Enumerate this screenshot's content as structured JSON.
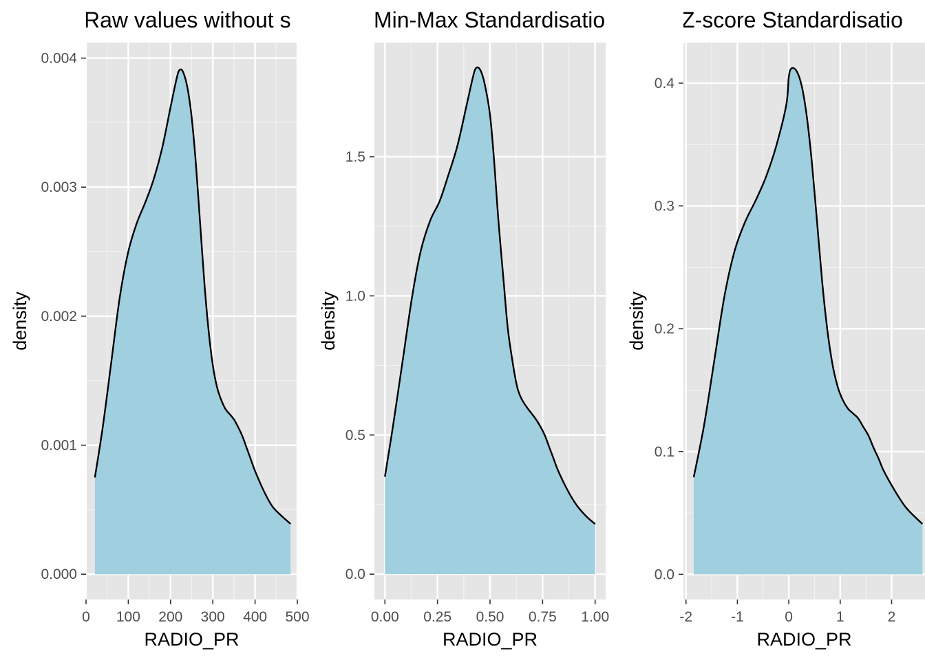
{
  "chart_data": [
    {
      "type": "area",
      "title": "Raw values without s",
      "xlabel": "RADIO_PR",
      "ylabel": "density",
      "xlim": [
        0,
        500
      ],
      "ylim": [
        -0.000196,
        0.00412
      ],
      "x_ticks": [
        0,
        100,
        200,
        300,
        400,
        500
      ],
      "x_tick_labels": [
        "0",
        "100",
        "200",
        "300",
        "400",
        "500"
      ],
      "y_ticks": [
        0,
        0.001,
        0.002,
        0.003,
        0.004
      ],
      "y_tick_labels": [
        "0.000",
        "0.001",
        "0.002",
        "0.003",
        "0.004"
      ],
      "grid": true,
      "fill_color": "#a0cfe0",
      "line_color": "#000000",
      "x": [
        21,
        40,
        60,
        80,
        100,
        120,
        140,
        160,
        180,
        200,
        215,
        222,
        230,
        240,
        250,
        260,
        270,
        280,
        290,
        300,
        310,
        320,
        330,
        340,
        350,
        360,
        370,
        380,
        390,
        400,
        420,
        440,
        460,
        484
      ],
      "y": [
        0.00075,
        0.00115,
        0.00165,
        0.00215,
        0.0025,
        0.00272,
        0.00288,
        0.00306,
        0.0033,
        0.00362,
        0.00385,
        0.00391,
        0.00389,
        0.00377,
        0.00354,
        0.00318,
        0.00272,
        0.00226,
        0.00189,
        0.00162,
        0.00145,
        0.00135,
        0.00128,
        0.00124,
        0.0012,
        0.00114,
        0.00107,
        0.00098,
        0.00089,
        0.0008,
        0.00065,
        0.00053,
        0.00046,
        0.00039
      ]
    },
    {
      "type": "area",
      "title": "Min-Max Standardisatio",
      "xlabel": "RADIO_PR",
      "ylabel": "density",
      "xlim": [
        -0.05,
        1.05
      ],
      "ylim": [
        -0.091,
        1.91
      ],
      "x_ticks": [
        0,
        0.25,
        0.5,
        0.75,
        1
      ],
      "x_tick_labels": [
        "0.00",
        "0.25",
        "0.50",
        "0.75",
        "1.00"
      ],
      "y_ticks": [
        0,
        0.5,
        1,
        1.5
      ],
      "y_tick_labels": [
        "0.0",
        "0.5",
        "1.0",
        "1.5"
      ],
      "grid": true,
      "fill_color": "#a0cfe0",
      "line_color": "#000000",
      "x": [
        0,
        0.04,
        0.085,
        0.13,
        0.17,
        0.215,
        0.26,
        0.3,
        0.345,
        0.39,
        0.42,
        0.435,
        0.455,
        0.475,
        0.5,
        0.52,
        0.54,
        0.565,
        0.585,
        0.61,
        0.63,
        0.65,
        0.675,
        0.695,
        0.715,
        0.74,
        0.76,
        0.78,
        0.8,
        0.825,
        0.87,
        0.91,
        0.955,
        1
      ],
      "y": [
        0.35,
        0.54,
        0.77,
        1.0,
        1.16,
        1.27,
        1.34,
        1.43,
        1.54,
        1.69,
        1.79,
        1.82,
        1.81,
        1.76,
        1.65,
        1.48,
        1.27,
        1.05,
        0.88,
        0.75,
        0.67,
        0.63,
        0.6,
        0.58,
        0.56,
        0.53,
        0.5,
        0.46,
        0.42,
        0.37,
        0.3,
        0.25,
        0.21,
        0.18
      ]
    },
    {
      "type": "area",
      "title": "Z-score Standardisatio",
      "xlabel": "RADIO_PR",
      "ylabel": "density",
      "xlim": [
        -2.05,
        2.65
      ],
      "ylim": [
        -0.0205,
        0.433
      ],
      "x_ticks": [
        -2,
        -1,
        0,
        1,
        2
      ],
      "x_tick_labels": [
        "-2",
        "-1",
        "0",
        "1",
        "2"
      ],
      "y_ticks": [
        0,
        0.1,
        0.2,
        0.3,
        0.4
      ],
      "y_tick_labels": [
        "0.0",
        "0.1",
        "0.2",
        "0.3",
        "0.4"
      ],
      "grid": true,
      "fill_color": "#a0cfe0",
      "line_color": "#000000",
      "x": [
        -1.85,
        -1.65,
        -1.45,
        -1.25,
        -1.05,
        -0.85,
        -0.65,
        -0.45,
        -0.25,
        -0.05,
        0.0,
        0.05,
        0.15,
        0.25,
        0.35,
        0.45,
        0.55,
        0.65,
        0.75,
        0.85,
        0.95,
        1.05,
        1.15,
        1.25,
        1.35,
        1.45,
        1.55,
        1.65,
        1.75,
        1.85,
        2.05,
        2.25,
        2.4,
        2.6
      ],
      "y": [
        0.079,
        0.121,
        0.174,
        0.227,
        0.264,
        0.287,
        0.304,
        0.323,
        0.348,
        0.382,
        0.405,
        0.412,
        0.41,
        0.398,
        0.373,
        0.335,
        0.287,
        0.238,
        0.199,
        0.171,
        0.153,
        0.142,
        0.135,
        0.131,
        0.127,
        0.12,
        0.113,
        0.103,
        0.094,
        0.084,
        0.069,
        0.056,
        0.049,
        0.041
      ]
    }
  ]
}
